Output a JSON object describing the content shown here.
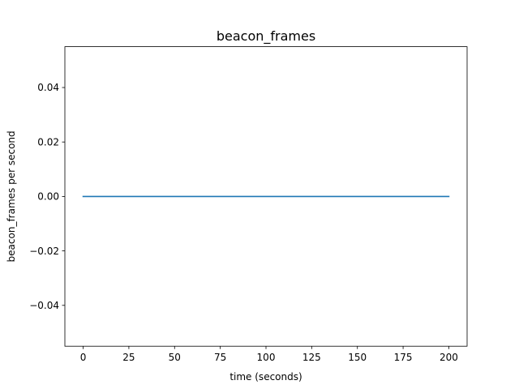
{
  "chart_data": {
    "type": "line",
    "title": "beacon_frames",
    "xlabel": "time (seconds)",
    "ylabel": "beacon_frames per second",
    "xlim": [
      -10,
      210
    ],
    "ylim": [
      -0.055,
      0.055
    ],
    "xticks": [
      0,
      25,
      50,
      75,
      100,
      125,
      150,
      175,
      200
    ],
    "xtick_labels": [
      "0",
      "25",
      "50",
      "75",
      "100",
      "125",
      "150",
      "175",
      "200"
    ],
    "yticks": [
      -0.04,
      -0.02,
      0.0,
      0.02,
      0.04
    ],
    "ytick_labels": [
      "−0.04",
      "−0.02",
      "0.00",
      "0.02",
      "0.04"
    ],
    "grid": false,
    "series": [
      {
        "color": "#1f77b4",
        "x": [
          0,
          200
        ],
        "y": [
          0,
          0
        ]
      }
    ]
  }
}
